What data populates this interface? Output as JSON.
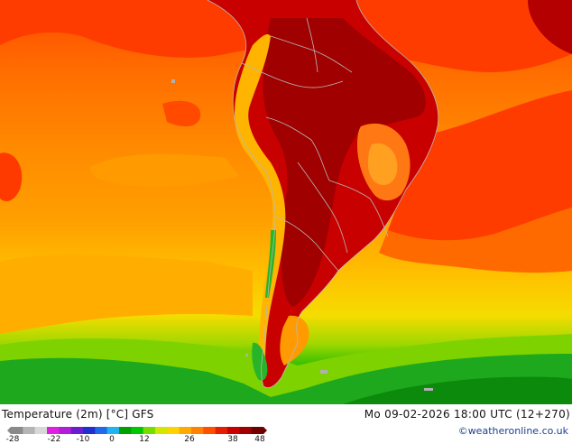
{
  "title": "Temperature (2m) [°C] GFS",
  "datetime": "Mo 09-02-2026 18:00 UTC (12+270)",
  "credit": "©weatheronline.co.uk",
  "legend": {
    "ticks": [
      "-28",
      "-22",
      "-10",
      "0",
      "12",
      "26",
      "38",
      "48"
    ],
    "colors": [
      "#8a8a8a",
      "#b4b4b4",
      "#d8d8d8",
      "#e01ee0",
      "#b01ed8",
      "#6a1ed0",
      "#2030d0",
      "#1e6ae8",
      "#1eb4f0",
      "#00a000",
      "#00c800",
      "#78dc00",
      "#d2e600",
      "#ffd200",
      "#ffaa00",
      "#ff8200",
      "#ff5000",
      "#e61e00",
      "#c80000",
      "#a00000",
      "#6e0000"
    ]
  },
  "palette": {
    "ocean_cold": "#19a619",
    "ocean_cool": "#7ed200",
    "ocean_mild": "#f0c800",
    "ocean_warm": "#ff9600",
    "ocean_hot": "#ff6400",
    "land_hot": "#d20000",
    "land_very_hot": "#9a0000",
    "brazil_plateau": "#ff7814",
    "andes": "#ffb400",
    "border": "#b0b0b0"
  }
}
